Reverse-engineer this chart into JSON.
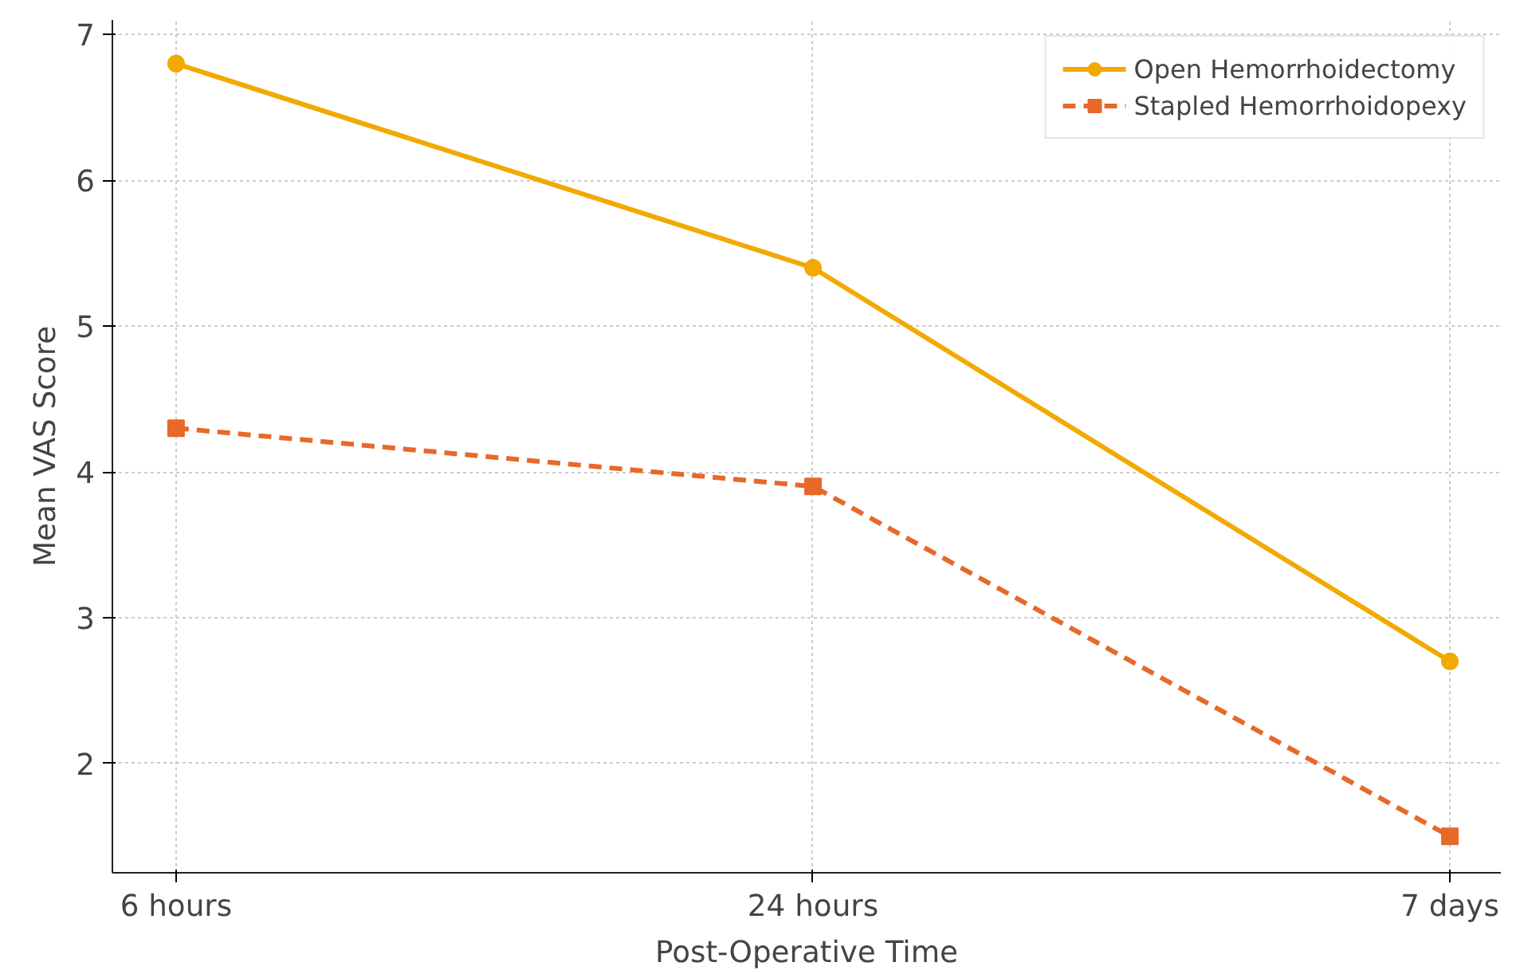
{
  "chart_data": {
    "type": "line",
    "xlabel": "Post-Operative Time",
    "ylabel": "Mean VAS Score",
    "categories": [
      "6 hours",
      "24 hours",
      "7 days"
    ],
    "series": [
      {
        "name": "Open Hemorrhoidectomy",
        "color": "#f2a900",
        "values": [
          6.8,
          5.4,
          2.7
        ],
        "marker": "circle",
        "line_style": "solid"
      },
      {
        "name": "Stapled Hemorrhoidopexy",
        "color": "#e8682a",
        "values": [
          4.3,
          3.9,
          1.5
        ],
        "marker": "square",
        "line_style": "dashed"
      }
    ],
    "ylim": [
      1.25,
      7.1
    ],
    "yticks": [
      2,
      3,
      4,
      5,
      6,
      7
    ],
    "grid": true,
    "legend": "top right"
  }
}
